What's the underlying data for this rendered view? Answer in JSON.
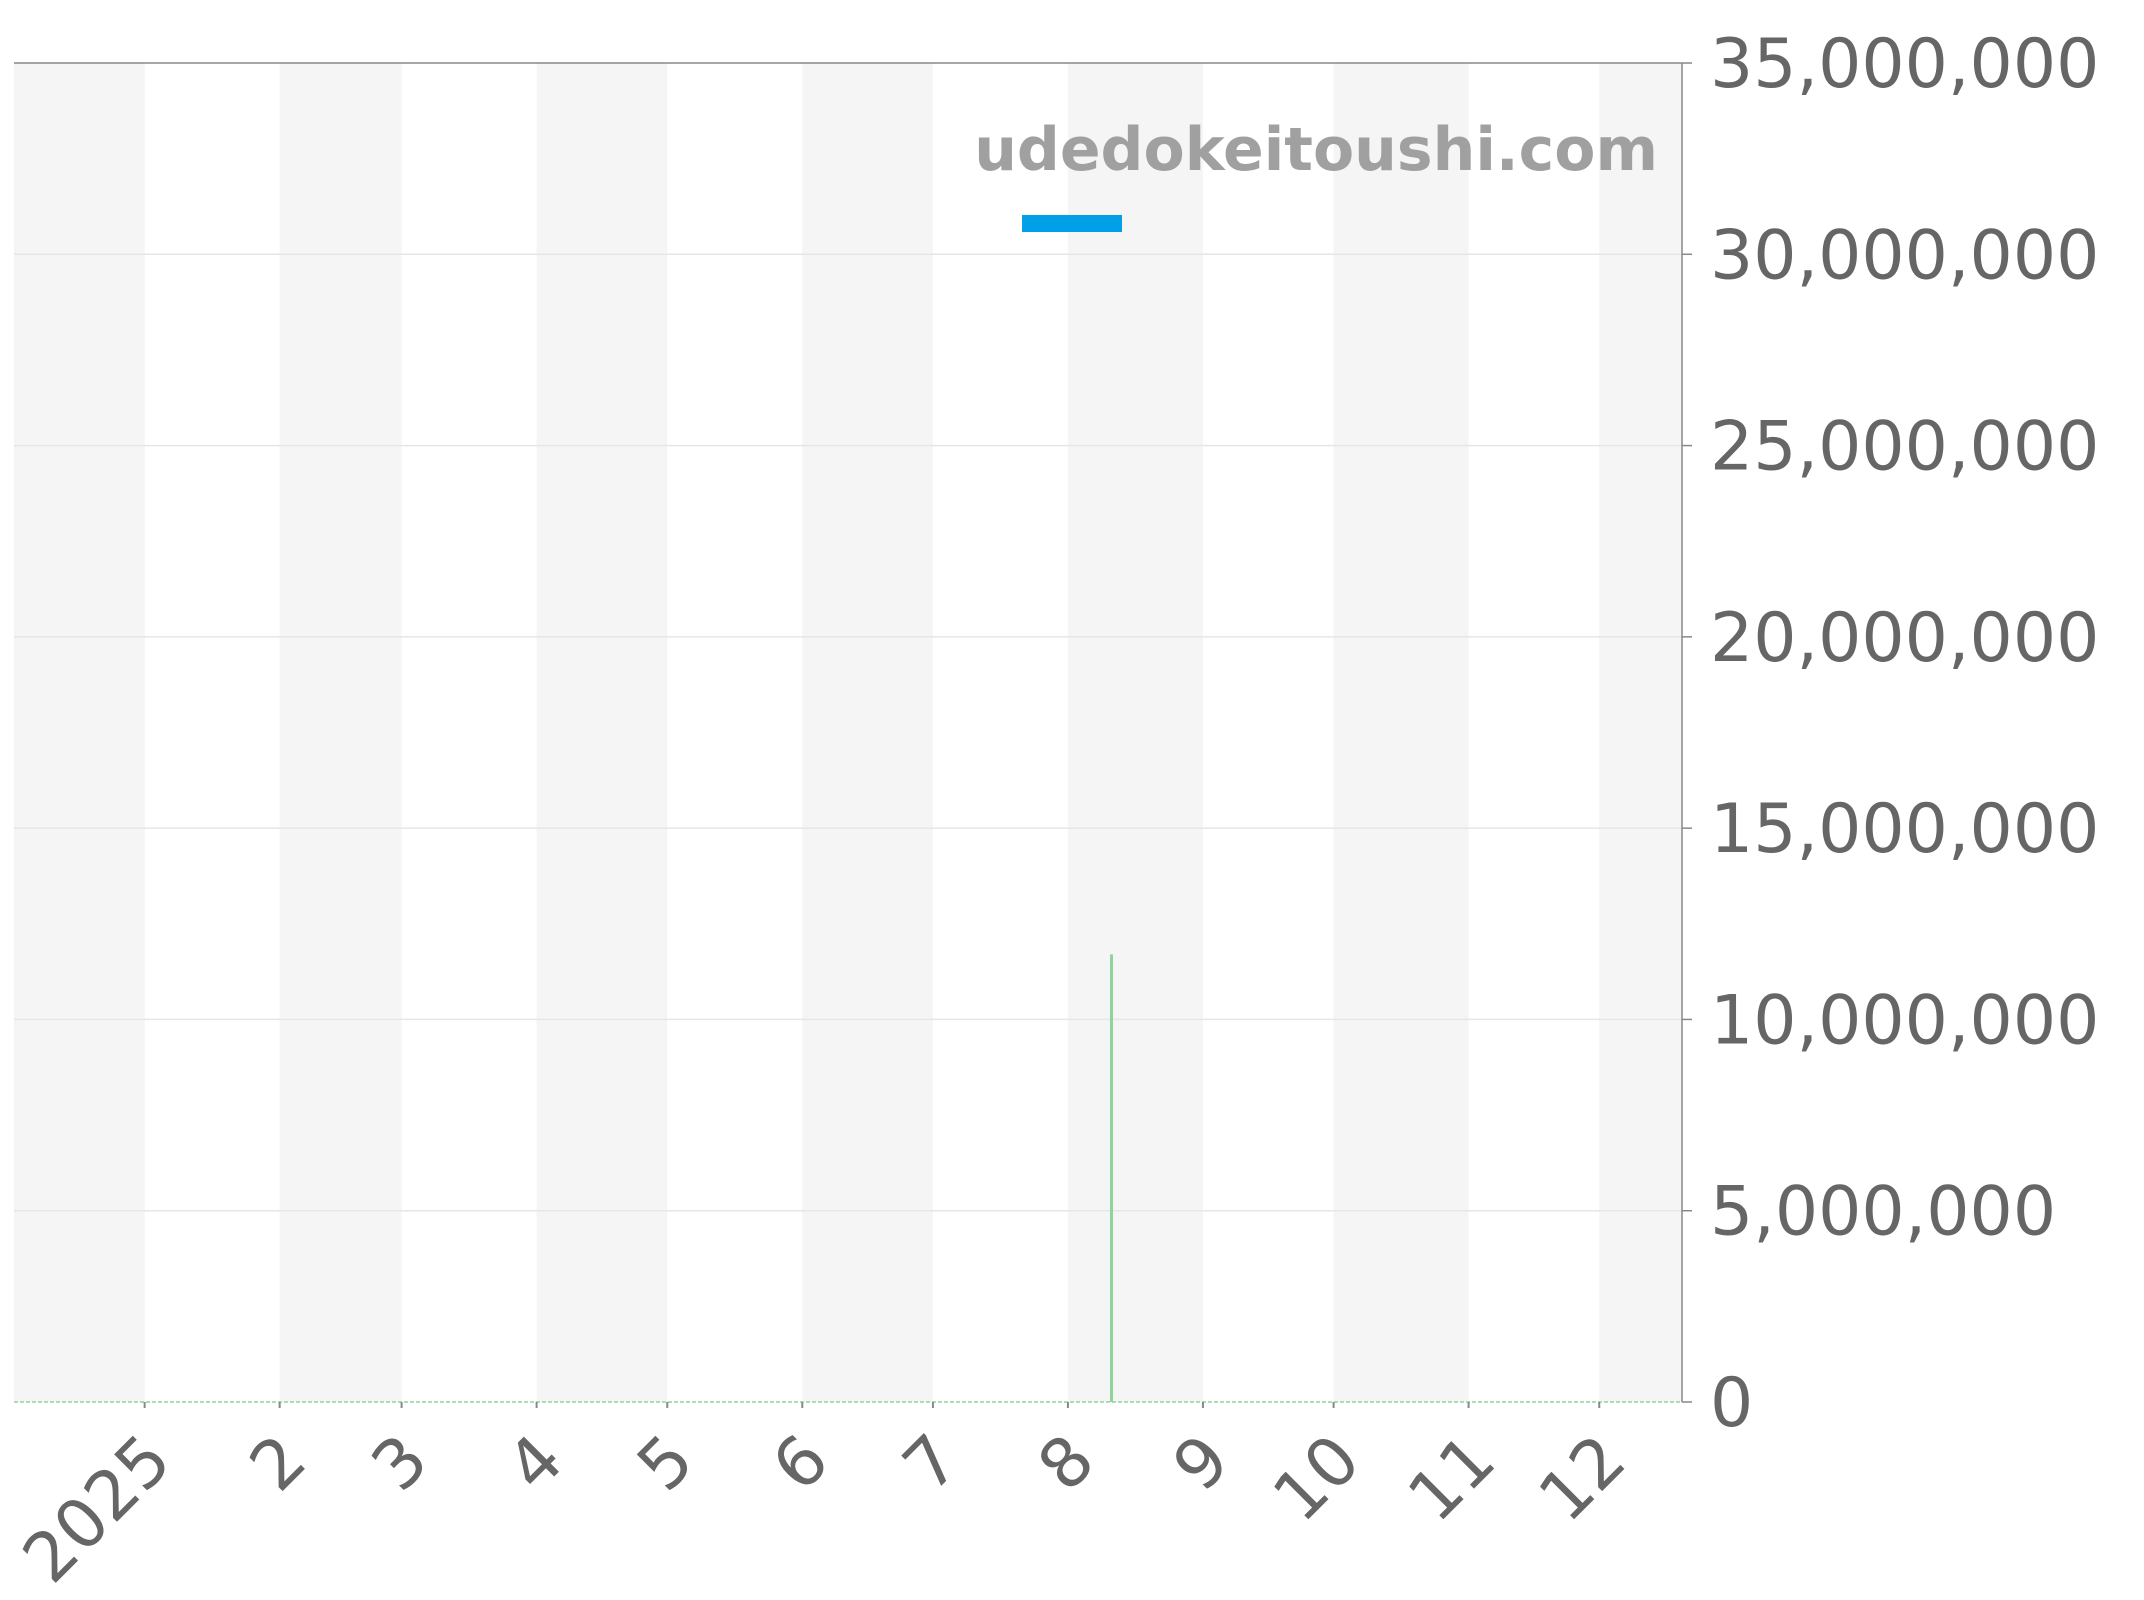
{
  "chart_data": {
    "type": "line",
    "title": "",
    "xlabel": "",
    "ylabel": "",
    "watermark": "udedokeitoushi.com",
    "xlim": [
      "2024-12-02",
      "2025-12-20"
    ],
    "ylim": [
      0,
      35000000
    ],
    "x_ticks": [
      {
        "date": "2025-01-01",
        "label": "2025"
      },
      {
        "date": "2025-02-01",
        "label": "2"
      },
      {
        "date": "2025-03-01",
        "label": "3"
      },
      {
        "date": "2025-04-01",
        "label": "4"
      },
      {
        "date": "2025-05-01",
        "label": "5"
      },
      {
        "date": "2025-06-01",
        "label": "6"
      },
      {
        "date": "2025-07-01",
        "label": "7"
      },
      {
        "date": "2025-08-01",
        "label": "8"
      },
      {
        "date": "2025-09-01",
        "label": "9"
      },
      {
        "date": "2025-10-01",
        "label": "10"
      },
      {
        "date": "2025-11-01",
        "label": "11"
      },
      {
        "date": "2025-12-01",
        "label": "12"
      }
    ],
    "y_ticks": [
      {
        "value": 0,
        "label": "0"
      },
      {
        "value": 5000000,
        "label": "5,000,000"
      },
      {
        "value": 10000000,
        "label": "10,000,000"
      },
      {
        "value": 15000000,
        "label": "15,000,000"
      },
      {
        "value": 20000000,
        "label": "20,000,000"
      },
      {
        "value": 25000000,
        "label": "25,000,000"
      },
      {
        "value": 30000000,
        "label": "30,000,000"
      },
      {
        "value": 35000000,
        "label": "35,000,000"
      }
    ],
    "grid": true,
    "alternating_month_bands": true,
    "y_axis_side": "right",
    "legend": {
      "placement": "top-right",
      "entries": [
        {
          "color": "#009fe8"
        }
      ]
    },
    "series": [
      {
        "color": "#009fe8",
        "points": []
      },
      {
        "color": "#8fd49a",
        "style": "spike",
        "points": [
          {
            "x": "2025-08-11",
            "y": 11700000
          }
        ]
      }
    ],
    "colors": {
      "band": "#f5f5f5",
      "grid": "#e6e6e6",
      "axis": "#888888",
      "text": "#666666",
      "watermark": "#a0a0a0"
    }
  }
}
